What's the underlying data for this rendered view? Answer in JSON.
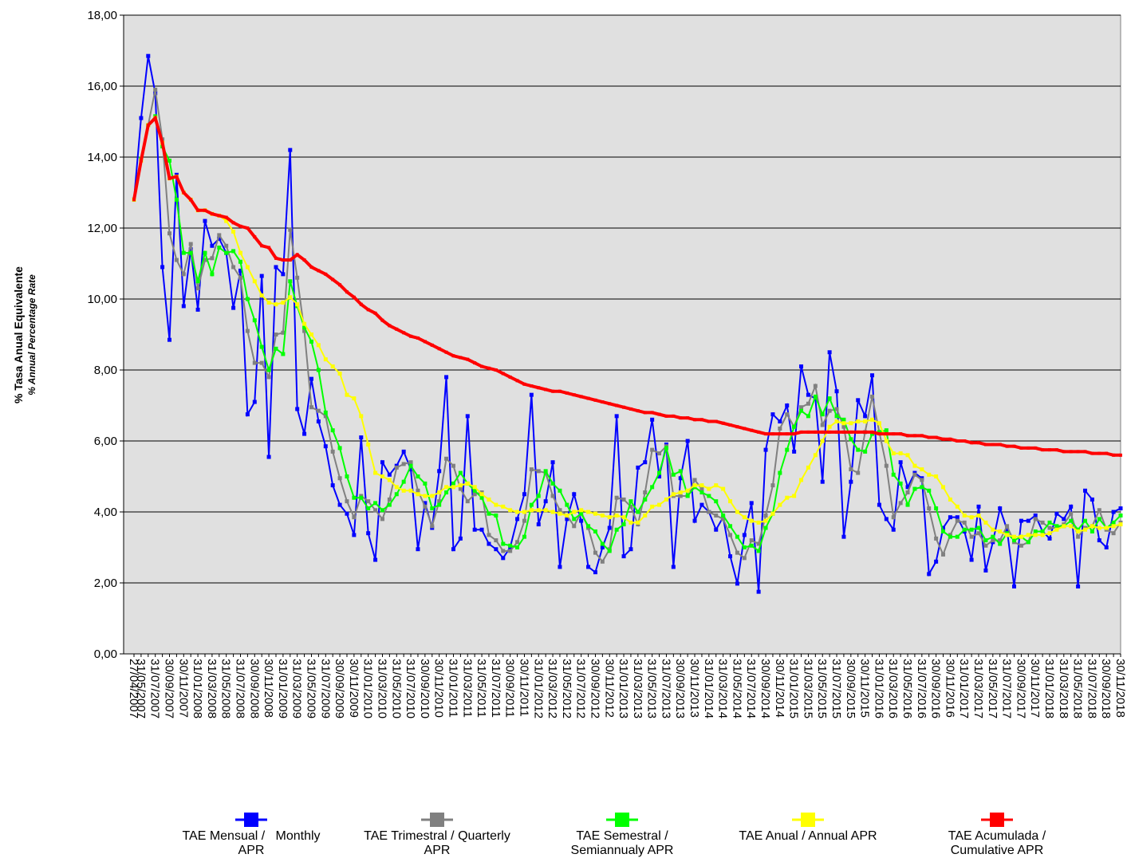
{
  "chart_data": {
    "type": "line",
    "ylabel": "% Tasa Anual Equivalente",
    "ylabel_sub": "% Annual Percentage Rate",
    "ylim": [
      0,
      18
    ],
    "yticks": [
      {
        "value": 0,
        "label": "0,00"
      },
      {
        "value": 2,
        "label": "2,00"
      },
      {
        "value": 4,
        "label": "4,00"
      },
      {
        "value": 6,
        "label": "6,00"
      },
      {
        "value": 8,
        "label": "8,00"
      },
      {
        "value": 10,
        "label": "10,00"
      },
      {
        "value": 12,
        "label": "12,00"
      },
      {
        "value": 14,
        "label": "14,00"
      },
      {
        "value": 16,
        "label": "16,00"
      },
      {
        "value": 18,
        "label": "18,00"
      }
    ],
    "grid": true,
    "background": "#e0e0e0",
    "categories": [
      "27/04/2007",
      "31/05/2007",
      null,
      "31/07/2007",
      null,
      "30/09/2007",
      null,
      "30/11/2007",
      null,
      "31/01/2008",
      null,
      "31/03/2008",
      null,
      "31/05/2008",
      null,
      "31/07/2008",
      null,
      "30/09/2008",
      null,
      "30/11/2008",
      null,
      "31/01/2009",
      null,
      "31/03/2009",
      null,
      "31/05/2009",
      null,
      "31/07/2009",
      null,
      "30/09/2009",
      null,
      "30/11/2009",
      null,
      "31/01/2010",
      null,
      "31/03/2010",
      null,
      "31/05/2010",
      null,
      "31/07/2010",
      null,
      "30/09/2010",
      null,
      "30/11/2010",
      null,
      "31/01/2011",
      null,
      "31/03/2011",
      null,
      "31/05/2011",
      null,
      "31/07/2011",
      null,
      "30/09/2011",
      null,
      "30/11/2011",
      null,
      "31/01/2012",
      null,
      "31/03/2012",
      null,
      "31/05/2012",
      null,
      "31/07/2012",
      null,
      "30/09/2012",
      null,
      "30/11/2012",
      null,
      "31/01/2013",
      null,
      "31/03/2013",
      null,
      "31/05/2013",
      null,
      "31/07/2013",
      null,
      "30/09/2013",
      null,
      "30/11/2013",
      null,
      "31/01/2014",
      null,
      "31/03/2014",
      null,
      "31/05/2014",
      null,
      "31/07/2014",
      null,
      "30/09/2014",
      null,
      "30/11/2014",
      null,
      "31/01/2015",
      null,
      "31/03/2015",
      null,
      "31/05/2015",
      null,
      "31/07/2015",
      null,
      "30/09/2015",
      null,
      "30/11/2015",
      null,
      "31/01/2016",
      null,
      "31/03/2016",
      null,
      "31/05/2016",
      null,
      "31/07/2016",
      null,
      "30/09/2016",
      null,
      "30/11/2016",
      null,
      "31/01/2017",
      null,
      "31/03/2017",
      null,
      "31/05/2017",
      null,
      "31/07/2017",
      null,
      "30/09/2017",
      null,
      "30/11/2017",
      null,
      "31/01/2018",
      null,
      "31/03/2018",
      null,
      "31/05/2018",
      null,
      "31/07/2018",
      null,
      "30/09/2018",
      null,
      "30/11/2018"
    ],
    "series": [
      {
        "name": "TAE Mensual /   Monthly APR",
        "color": "#0000ff",
        "values": [
          12.8,
          15.1,
          16.85,
          15.8,
          10.9,
          8.85,
          13.5,
          9.8,
          11.4,
          9.7,
          12.2,
          11.5,
          11.7,
          11.3,
          9.75,
          10.8,
          6.75,
          7.1,
          10.65,
          5.55,
          10.9,
          10.7,
          14.2,
          6.9,
          6.2,
          7.75,
          6.55,
          5.85,
          4.75,
          4.2,
          3.95,
          3.35,
          6.1,
          3.4,
          2.65,
          5.4,
          5.05,
          5.3,
          5.7,
          5.2,
          2.95,
          4.25,
          3.55,
          5.15,
          7.8,
          2.95,
          3.25,
          6.7,
          3.5,
          3.5,
          3.1,
          2.95,
          2.7,
          3.0,
          3.8,
          4.5,
          7.3,
          3.65,
          4.3,
          5.4,
          2.45,
          3.8,
          4.5,
          3.75,
          2.45,
          2.3,
          3.0,
          3.55,
          6.7,
          2.75,
          2.95,
          5.25,
          5.4,
          6.6,
          5.0,
          5.9,
          2.45,
          4.95,
          6.0,
          3.75,
          4.2,
          4.0,
          3.5,
          3.85,
          2.75,
          1.98,
          3.35,
          4.25,
          1.75,
          5.75,
          6.75,
          6.55,
          7.0,
          5.7,
          8.1,
          7.3,
          7.2,
          4.85,
          8.5,
          7.4,
          3.3,
          4.85,
          7.15,
          6.7,
          7.85,
          4.2,
          3.8,
          3.5,
          5.4,
          4.7,
          5.1,
          4.95,
          2.25,
          2.6,
          3.55,
          3.85,
          3.85,
          3.45,
          2.65,
          4.15,
          2.35,
          3.15,
          4.1,
          3.5,
          1.9,
          3.75,
          3.75,
          3.9,
          3.45,
          3.25,
          3.95,
          3.8,
          4.15,
          1.9,
          4.6,
          4.35,
          3.2,
          3.0,
          4.0,
          4.1
        ]
      },
      {
        "name": "TAE Trimestral / Quarterly APR",
        "color": "#808080",
        "values": [
          12.8,
          13.95,
          14.9,
          15.9,
          14.5,
          11.85,
          11.1,
          10.7,
          11.55,
          10.3,
          11.1,
          11.15,
          11.8,
          11.5,
          10.9,
          10.6,
          9.1,
          8.2,
          8.2,
          7.8,
          9.0,
          9.05,
          11.95,
          10.6,
          9.1,
          6.95,
          6.85,
          6.7,
          5.7,
          4.95,
          4.3,
          3.85,
          4.45,
          4.3,
          4.05,
          3.8,
          4.35,
          5.25,
          5.35,
          5.4,
          4.6,
          4.15,
          3.6,
          4.3,
          5.5,
          5.3,
          4.65,
          4.3,
          4.5,
          4.55,
          3.35,
          3.2,
          2.9,
          2.9,
          3.15,
          3.75,
          5.2,
          5.15,
          5.1,
          4.45,
          4.05,
          3.9,
          3.6,
          4.0,
          3.55,
          2.85,
          2.6,
          2.95,
          4.4,
          4.35,
          4.15,
          3.65,
          4.55,
          5.75,
          5.65,
          5.85,
          4.45,
          4.45,
          4.45,
          4.9,
          4.65,
          4.0,
          3.9,
          3.8,
          3.35,
          2.85,
          2.7,
          3.2,
          3.1,
          3.9,
          4.75,
          6.35,
          6.75,
          6.4,
          6.95,
          7.05,
          7.55,
          6.45,
          6.85,
          6.9,
          6.4,
          5.2,
          5.1,
          6.25,
          7.25,
          6.25,
          5.3,
          3.85,
          4.25,
          4.55,
          5.05,
          4.9,
          4.1,
          3.25,
          2.8,
          3.35,
          3.75,
          3.7,
          3.3,
          3.4,
          3.05,
          3.2,
          3.2,
          3.6,
          3.15,
          3.05,
          3.15,
          3.8,
          3.7,
          3.55,
          3.55,
          3.65,
          3.95,
          3.3,
          3.55,
          3.6,
          4.05,
          3.5,
          3.4,
          3.7
        ]
      },
      {
        "name": "TAE Semestral / Semiannualy APR",
        "color": "#00ff00",
        "values": [
          12.8,
          13.95,
          14.9,
          15.15,
          14.3,
          13.9,
          12.8,
          11.3,
          11.3,
          10.5,
          11.3,
          10.7,
          11.45,
          11.3,
          11.35,
          11.05,
          10.0,
          9.4,
          8.65,
          8.0,
          8.6,
          8.45,
          10.5,
          9.8,
          9.2,
          8.8,
          8.0,
          6.8,
          6.3,
          5.8,
          5.0,
          4.4,
          4.4,
          4.1,
          4.25,
          4.05,
          4.2,
          4.5,
          4.85,
          5.3,
          5.0,
          4.8,
          4.1,
          4.2,
          4.55,
          4.8,
          5.1,
          4.8,
          4.6,
          4.4,
          3.95,
          3.9,
          3.1,
          3.05,
          3.0,
          3.3,
          4.2,
          4.45,
          5.15,
          4.8,
          4.6,
          4.2,
          3.8,
          3.95,
          3.6,
          3.45,
          3.1,
          2.9,
          3.5,
          3.65,
          4.3,
          4.0,
          4.35,
          4.7,
          5.1,
          5.8,
          5.05,
          5.15,
          4.45,
          4.7,
          4.55,
          4.45,
          4.3,
          3.9,
          3.6,
          3.3,
          3.0,
          3.05,
          2.9,
          3.55,
          3.95,
          5.1,
          5.75,
          6.4,
          6.85,
          6.7,
          7.25,
          6.75,
          7.2,
          6.7,
          6.6,
          6.05,
          5.75,
          5.7,
          6.2,
          6.25,
          6.3,
          5.05,
          4.8,
          4.2,
          4.65,
          4.7,
          4.6,
          4.1,
          3.45,
          3.3,
          3.3,
          3.5,
          3.5,
          3.55,
          3.2,
          3.3,
          3.1,
          3.4,
          3.2,
          3.3,
          3.15,
          3.45,
          3.45,
          3.7,
          3.6,
          3.6,
          3.75,
          3.5,
          3.75,
          3.45,
          3.8,
          3.55,
          3.7,
          3.9
        ]
      },
      {
        "name": "TAE Anual / Annual APR",
        "color": "#ffff00",
        "values": [
          12.8,
          13.9,
          14.9,
          15.1,
          14.4,
          13.4,
          13.45,
          13.0,
          12.8,
          12.5,
          12.5,
          12.4,
          12.35,
          12.2,
          11.9,
          11.3,
          10.9,
          10.5,
          10.1,
          9.9,
          9.85,
          9.9,
          10.05,
          9.85,
          9.3,
          9.0,
          8.7,
          8.3,
          8.1,
          7.9,
          7.3,
          7.2,
          6.7,
          5.9,
          5.1,
          5.0,
          4.9,
          4.7,
          4.6,
          4.6,
          4.5,
          4.45,
          4.45,
          4.55,
          4.7,
          4.7,
          4.75,
          4.8,
          4.7,
          4.5,
          4.35,
          4.2,
          4.15,
          4.05,
          4.0,
          4.0,
          4.05,
          4.05,
          4.05,
          4.0,
          3.95,
          3.9,
          4.0,
          4.05,
          4.0,
          3.95,
          3.9,
          3.85,
          3.9,
          3.85,
          3.7,
          3.7,
          3.9,
          4.15,
          4.2,
          4.35,
          4.5,
          4.55,
          4.6,
          4.75,
          4.75,
          4.65,
          4.75,
          4.65,
          4.3,
          4.0,
          3.85,
          3.75,
          3.7,
          3.75,
          3.95,
          4.2,
          4.4,
          4.45,
          4.9,
          5.25,
          5.6,
          6.0,
          6.4,
          6.55,
          6.5,
          6.5,
          6.55,
          6.55,
          6.6,
          6.5,
          6.0,
          5.65,
          5.65,
          5.6,
          5.3,
          5.2,
          5.05,
          5.0,
          4.7,
          4.35,
          4.15,
          3.9,
          3.85,
          3.9,
          3.7,
          3.5,
          3.45,
          3.35,
          3.3,
          3.3,
          3.35,
          3.35,
          3.35,
          3.4,
          3.5,
          3.6,
          3.6,
          3.45,
          3.5,
          3.6,
          3.55,
          3.55,
          3.6,
          3.65
        ]
      },
      {
        "name": "TAE Acumulada / Cumulative APR",
        "color": "#ff0000",
        "values": [
          12.8,
          13.9,
          14.9,
          15.1,
          14.4,
          13.4,
          13.45,
          13.0,
          12.8,
          12.5,
          12.5,
          12.4,
          12.35,
          12.3,
          12.15,
          12.05,
          12.0,
          11.75,
          11.5,
          11.45,
          11.15,
          11.1,
          11.1,
          11.25,
          11.1,
          10.9,
          10.8,
          10.7,
          10.55,
          10.4,
          10.2,
          10.05,
          9.85,
          9.7,
          9.6,
          9.4,
          9.25,
          9.15,
          9.05,
          8.95,
          8.9,
          8.8,
          8.7,
          8.6,
          8.5,
          8.4,
          8.35,
          8.3,
          8.2,
          8.1,
          8.05,
          8.0,
          7.9,
          7.8,
          7.7,
          7.6,
          7.55,
          7.5,
          7.45,
          7.4,
          7.4,
          7.35,
          7.3,
          7.25,
          7.2,
          7.15,
          7.1,
          7.05,
          7.0,
          6.95,
          6.9,
          6.85,
          6.8,
          6.8,
          6.75,
          6.7,
          6.7,
          6.65,
          6.65,
          6.6,
          6.6,
          6.55,
          6.55,
          6.5,
          6.45,
          6.4,
          6.35,
          6.3,
          6.25,
          6.2,
          6.2,
          6.2,
          6.2,
          6.2,
          6.25,
          6.25,
          6.25,
          6.25,
          6.25,
          6.25,
          6.25,
          6.25,
          6.25,
          6.25,
          6.25,
          6.2,
          6.2,
          6.2,
          6.2,
          6.15,
          6.15,
          6.15,
          6.1,
          6.1,
          6.05,
          6.05,
          6.0,
          6.0,
          5.95,
          5.95,
          5.9,
          5.9,
          5.9,
          5.85,
          5.85,
          5.8,
          5.8,
          5.8,
          5.75,
          5.75,
          5.75,
          5.7,
          5.7,
          5.7,
          5.7,
          5.65,
          5.65,
          5.65,
          5.6,
          5.6
        ]
      }
    ]
  }
}
